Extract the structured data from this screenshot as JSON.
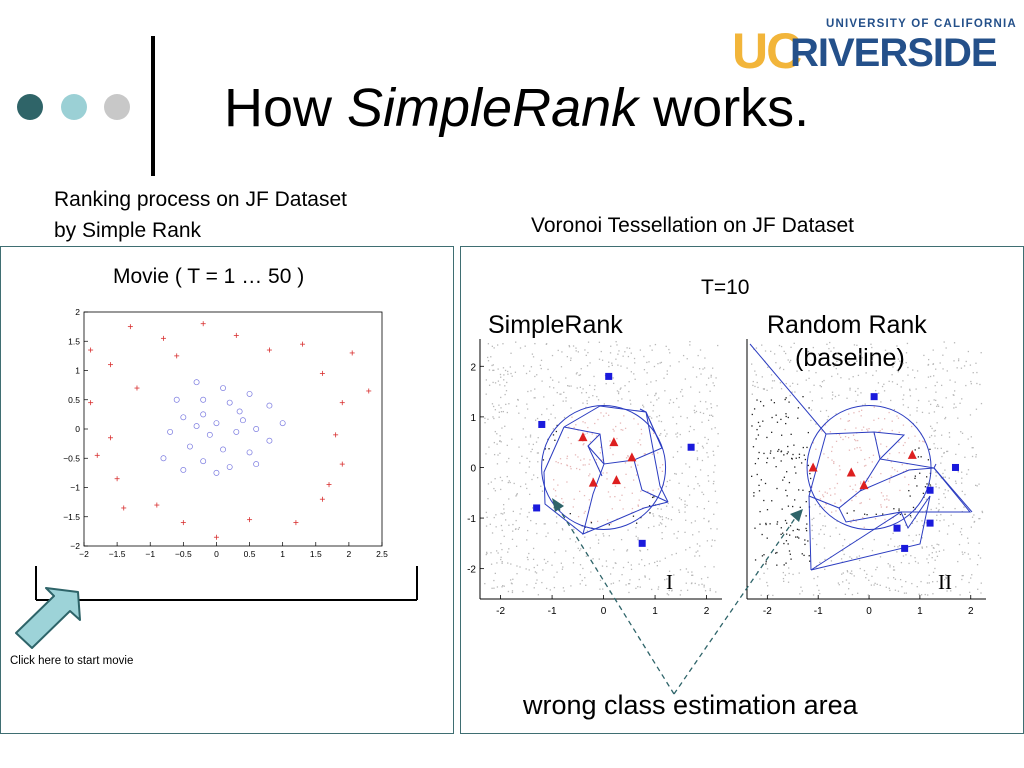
{
  "header": {
    "title_prefix": "How ",
    "title_italic": "SimpleRank",
    "title_suffix": " works.",
    "logo_top": "UNIVERSITY OF CALIFORNIA",
    "logo_uc": "UC",
    "logo_riverside": "RIVERSIDE",
    "colors": {
      "dot1": "#2f6468",
      "dot2": "#9bd0d5",
      "dot3": "#c8c8c8",
      "gold": "#f2b53a",
      "blue": "#24508a"
    }
  },
  "left": {
    "caption": [
      "Ranking process on JF Dataset",
      "by Simple Rank"
    ],
    "movie_title": "Movie ( T = 1 … 50 )",
    "click_text": "Click here to start movie"
  },
  "right": {
    "caption": "Voronoi Tessellation on JF Dataset",
    "t_label": "T=10",
    "simplerank_label": "SimpleRank",
    "random_label_1": "Random Rank",
    "random_label_2": "(baseline)",
    "roman_1": "I",
    "roman_2": "II",
    "wrong_area": "wrong class estimation area"
  },
  "chart_data": [
    {
      "type": "scatter",
      "title": "",
      "xlabel": "",
      "ylabel": "",
      "xlim": [
        -2,
        2.5
      ],
      "ylim": [
        -2,
        2
      ],
      "xticks": [
        "−2",
        "−1.5",
        "−1",
        "−0.5",
        "0",
        "0.5",
        "1",
        "1.5",
        "2",
        "2.5"
      ],
      "yticks": [
        "2",
        "1.5",
        "1",
        "0.5",
        "0",
        "−0.5",
        "−1",
        "−1.5",
        "−2"
      ],
      "series": [
        {
          "marker": "circle",
          "color": "#7a7ae0",
          "points": [
            [
              -0.3,
              0.8
            ],
            [
              0.1,
              0.7
            ],
            [
              0.5,
              0.6
            ],
            [
              -0.6,
              0.5
            ],
            [
              -0.2,
              0.5
            ],
            [
              0.2,
              0.45
            ],
            [
              0.8,
              0.4
            ],
            [
              -0.5,
              0.2
            ],
            [
              0.0,
              0.1
            ],
            [
              0.4,
              0.15
            ],
            [
              -0.3,
              0.05
            ],
            [
              0.6,
              0.0
            ],
            [
              1.0,
              0.1
            ],
            [
              -0.7,
              -0.05
            ],
            [
              -0.1,
              -0.1
            ],
            [
              0.3,
              -0.05
            ],
            [
              0.8,
              -0.2
            ],
            [
              -0.4,
              -0.3
            ],
            [
              0.1,
              -0.35
            ],
            [
              0.5,
              -0.4
            ],
            [
              -0.8,
              -0.5
            ],
            [
              -0.2,
              -0.55
            ],
            [
              0.2,
              -0.65
            ],
            [
              0.6,
              -0.6
            ],
            [
              -0.5,
              -0.7
            ],
            [
              0.0,
              -0.75
            ],
            [
              -0.2,
              0.25
            ],
            [
              0.35,
              0.3
            ]
          ]
        },
        {
          "marker": "plus",
          "color": "#d83030",
          "points": [
            [
              -1.3,
              1.75
            ],
            [
              -0.2,
              1.8
            ],
            [
              0.3,
              1.6
            ],
            [
              0.8,
              1.35
            ],
            [
              1.3,
              1.45
            ],
            [
              -0.8,
              1.55
            ],
            [
              -1.6,
              1.1
            ],
            [
              1.6,
              0.95
            ],
            [
              -1.2,
              0.7
            ],
            [
              2.3,
              0.65
            ],
            [
              -1.9,
              0.45
            ],
            [
              1.9,
              0.45
            ],
            [
              -1.6,
              -0.15
            ],
            [
              1.8,
              -0.1
            ],
            [
              -1.8,
              -0.45
            ],
            [
              1.9,
              -0.6
            ],
            [
              -1.5,
              -0.85
            ],
            [
              1.7,
              -0.95
            ],
            [
              -1.4,
              -1.35
            ],
            [
              -0.9,
              -1.3
            ],
            [
              -0.5,
              -1.6
            ],
            [
              0.0,
              -1.85
            ],
            [
              0.5,
              -1.55
            ],
            [
              1.2,
              -1.6
            ],
            [
              1.6,
              -1.2
            ],
            [
              -1.9,
              1.35
            ],
            [
              -0.6,
              1.25
            ],
            [
              2.05,
              1.3
            ]
          ]
        }
      ]
    },
    {
      "type": "scatter",
      "title": "SimpleRank",
      "xlim": [
        -2.4,
        2.3
      ],
      "ylim": [
        -2.6,
        2.5
      ],
      "xticks": [
        "-2",
        "-1",
        "0",
        "1",
        "2"
      ],
      "yticks": [
        "2",
        "1",
        "0",
        "-1",
        "-2"
      ],
      "series": [
        {
          "marker": "triangle",
          "color": "#dd1f1f",
          "points": [
            [
              -0.4,
              0.6
            ],
            [
              0.2,
              0.5
            ],
            [
              0.55,
              0.2
            ],
            [
              -0.2,
              -0.3
            ],
            [
              0.25,
              -0.25
            ]
          ]
        },
        {
          "marker": "square",
          "color": "#1a1adc",
          "points": [
            [
              0.1,
              1.8
            ],
            [
              -1.2,
              0.85
            ],
            [
              1.7,
              0.4
            ],
            [
              -1.3,
              -0.8
            ],
            [
              0.75,
              -1.5
            ]
          ]
        }
      ]
    },
    {
      "type": "scatter",
      "title": "Random Rank (baseline)",
      "xlim": [
        -2.4,
        2.3
      ],
      "ylim": [
        -2.6,
        2.5
      ],
      "xticks": [
        "-2",
        "-1",
        "0",
        "1",
        "2"
      ],
      "yticks": [],
      "series": [
        {
          "marker": "triangle",
          "color": "#dd1f1f",
          "points": [
            [
              -1.1,
              0.0
            ],
            [
              -0.35,
              -0.1
            ],
            [
              -0.1,
              -0.35
            ],
            [
              0.85,
              0.25
            ]
          ]
        },
        {
          "marker": "square",
          "color": "#1a1adc",
          "points": [
            [
              0.1,
              1.4
            ],
            [
              1.7,
              0.0
            ],
            [
              1.2,
              -0.45
            ],
            [
              1.2,
              -1.1
            ],
            [
              0.55,
              -1.2
            ],
            [
              0.7,
              -1.6
            ]
          ]
        }
      ]
    }
  ]
}
